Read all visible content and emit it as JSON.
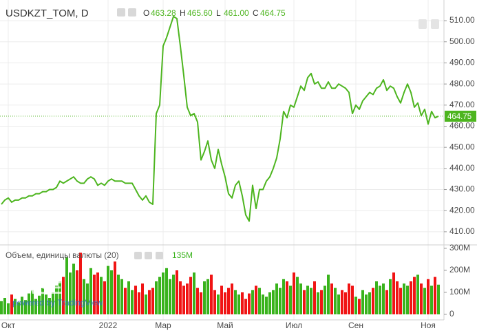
{
  "chart_data": [
    {
      "type": "line",
      "title": "USDKZT_TOM, D",
      "ohlc": [
        {
          "label": "O",
          "value": 463.28,
          "value_label": "463.28"
        },
        {
          "label": "H",
          "value": 465.6,
          "value_label": "465.60"
        },
        {
          "label": "L",
          "value": 461,
          "value_label": "461.00"
        },
        {
          "label": "C",
          "value": 464.75,
          "value_label": "464.75"
        }
      ],
      "categories": [
        null,
        null,
        "Окт",
        null,
        null,
        null,
        null,
        null,
        null,
        null,
        null,
        null,
        null,
        null,
        null,
        null,
        null,
        null,
        null,
        null,
        null,
        null,
        null,
        null,
        null,
        null,
        null,
        null,
        null,
        null,
        null,
        "2022",
        null,
        null,
        null,
        null,
        null,
        null,
        null,
        null,
        null,
        null,
        null,
        null,
        null,
        null,
        null,
        "Мар",
        null,
        null,
        null,
        null,
        null,
        null,
        null,
        null,
        null,
        null,
        null,
        null,
        null,
        null,
        null,
        null,
        null,
        "Май",
        null,
        null,
        null,
        null,
        null,
        null,
        null,
        null,
        null,
        null,
        null,
        null,
        null,
        null,
        null,
        null,
        null,
        null,
        null,
        "Июл",
        null,
        null,
        null,
        null,
        null,
        null,
        null,
        null,
        null,
        null,
        null,
        null,
        null,
        null,
        null,
        null,
        null,
        "Сен",
        null,
        null,
        null,
        null,
        null,
        null,
        null,
        null,
        null,
        null,
        null,
        null,
        null,
        null,
        null,
        null,
        null,
        null,
        null,
        null,
        "Ноя",
        null,
        null,
        null
      ],
      "series": [
        {
          "name": "USDKZT_TOM",
          "color": "#4db51f",
          "values": [
            423,
            425,
            426,
            424,
            425,
            425,
            426,
            426,
            427,
            427,
            428,
            428,
            429,
            429,
            430,
            430,
            431,
            434,
            433,
            434,
            435,
            436,
            434,
            433,
            433,
            435,
            436,
            435,
            432,
            433,
            432,
            434,
            435,
            434,
            434,
            434,
            433,
            433,
            433,
            430,
            427,
            425,
            427,
            424,
            423,
            466,
            470,
            498,
            502,
            507,
            512,
            511,
            498,
            484,
            469,
            465,
            466,
            462,
            444,
            448,
            453,
            444,
            440,
            449,
            442,
            436,
            428,
            426,
            432,
            434,
            427,
            418,
            415,
            432,
            421,
            430,
            430,
            434,
            436,
            440,
            445,
            454,
            467,
            464,
            470,
            469,
            474,
            479,
            477,
            483,
            485,
            480,
            481,
            478,
            478,
            481,
            478,
            478,
            480,
            479,
            478,
            476,
            466,
            470,
            468,
            472,
            474,
            476,
            475,
            478,
            479,
            482,
            477,
            479,
            478,
            474,
            471,
            476,
            480,
            476,
            469,
            471,
            465,
            468,
            461,
            467,
            464,
            464.75
          ]
        }
      ],
      "ylim": [
        404.1,
        519.8
      ],
      "yticks": [
        {
          "value": 410,
          "label": "410.00"
        },
        {
          "value": 420,
          "label": "420.00"
        },
        {
          "value": 430,
          "label": "430.00"
        },
        {
          "value": 440,
          "label": "440.00"
        },
        {
          "value": 450,
          "label": "450.00"
        },
        {
          "value": 460,
          "label": "460.00"
        },
        {
          "value": 470,
          "label": "470.00"
        },
        {
          "value": 480,
          "label": "480.00"
        },
        {
          "value": 490,
          "label": "490.00"
        },
        {
          "value": 500,
          "label": "500.00"
        },
        {
          "value": 510,
          "label": "510.00"
        }
      ],
      "grid": true,
      "watermark": {
        "logo": "KASE",
        "caption": "powered by TradingView"
      }
    },
    {
      "type": "bar",
      "title": "Объем, единицы валюты (20)",
      "legend_value": {
        "value": 135,
        "label": "135M"
      },
      "up_color": "#39b31c",
      "down_color": "#f01414",
      "values": [
        60,
        75,
        50,
        90,
        70,
        55,
        80,
        65,
        95,
        110,
        70,
        85,
        120,
        90,
        75,
        100,
        130,
        150,
        170,
        260,
        190,
        230,
        200,
        280,
        160,
        140,
        210,
        180,
        190,
        170,
        150,
        220,
        200,
        240,
        180,
        160,
        120,
        150,
        110,
        130,
        100,
        140,
        90,
        110,
        120,
        150,
        170,
        190,
        210,
        160,
        180,
        200,
        150,
        130,
        140,
        170,
        190,
        120,
        100,
        150,
        160,
        180,
        110,
        90,
        130,
        100,
        120,
        140,
        110,
        90,
        100,
        70,
        95,
        110,
        130,
        120,
        90,
        80,
        100,
        110,
        140,
        120,
        160,
        150,
        130,
        190,
        170,
        140,
        110,
        130,
        120,
        150,
        100,
        110,
        130,
        180,
        140,
        120,
        90,
        110,
        100,
        140,
        130,
        80,
        70,
        110,
        90,
        100,
        120,
        150,
        130,
        140,
        110,
        160,
        190,
        150,
        120,
        140,
        130,
        150,
        170,
        180,
        140,
        120,
        160,
        130,
        170,
        135
      ],
      "ylim": [
        -25,
        312.5
      ],
      "yticks": [
        0,
        {
          "value": 100,
          "label": "100M"
        },
        {
          "value": 200,
          "label": "200M"
        },
        {
          "value": 300,
          "label": "300M"
        }
      ]
    }
  ]
}
